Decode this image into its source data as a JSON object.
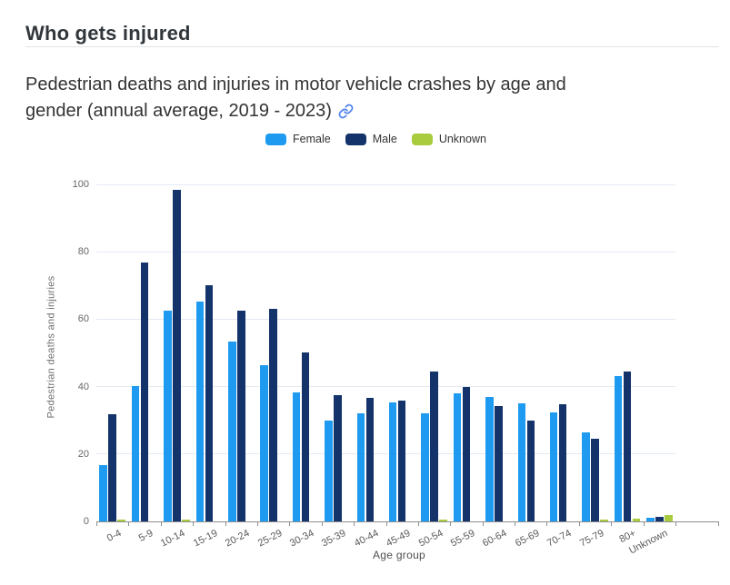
{
  "header": {
    "title": "Who gets injured"
  },
  "chart": {
    "title_line1": "Pedestrian deaths and injuries in motor vehicle crashes by age and",
    "title_line2": "gender (annual average, 2019 - 2023)",
    "link_icon": "link-icon",
    "link_color": "#4e83eb"
  },
  "chart_data": {
    "type": "bar",
    "title": "Pedestrian deaths and injuries in motor vehicle crashes by age and gender (annual average, 2019 - 2023)",
    "xlabel": "Age group",
    "ylabel": "Pedestrian deaths and injuries",
    "ylim": [
      0,
      100
    ],
    "yticks": [
      0,
      20,
      40,
      60,
      80,
      100
    ],
    "grid": true,
    "legend_position": "top-center",
    "categories": [
      "0-4",
      "5-9",
      "10-14",
      "15-19",
      "20-24",
      "25-29",
      "30-34",
      "35-39",
      "40-44",
      "45-49",
      "50-54",
      "55-59",
      "60-64",
      "65-69",
      "70-74",
      "75-79",
      "80+",
      "Unknown"
    ],
    "series": [
      {
        "name": "Female",
        "color": "#1e9bf0",
        "values": [
          16.6,
          40.3,
          62.6,
          65.2,
          53.5,
          46.5,
          38.3,
          29.8,
          32.1,
          35.4,
          32.1,
          37.9,
          37.0,
          35.1,
          32.4,
          26.4,
          43.2,
          1.2
        ]
      },
      {
        "name": "Male",
        "color": "#14336a",
        "values": [
          31.7,
          76.7,
          98.4,
          70.1,
          62.5,
          63.1,
          50.2,
          37.4,
          36.6,
          35.9,
          44.6,
          40.0,
          34.2,
          30.0,
          34.7,
          24.6,
          44.5,
          1.3
        ]
      },
      {
        "name": "Unknown",
        "color": "#a8cc3e",
        "values": [
          0.6,
          0,
          0.6,
          0,
          0,
          0,
          0,
          0,
          0,
          0,
          0.5,
          0,
          0,
          0,
          0,
          0.6,
          0.7,
          1.8
        ]
      }
    ]
  }
}
